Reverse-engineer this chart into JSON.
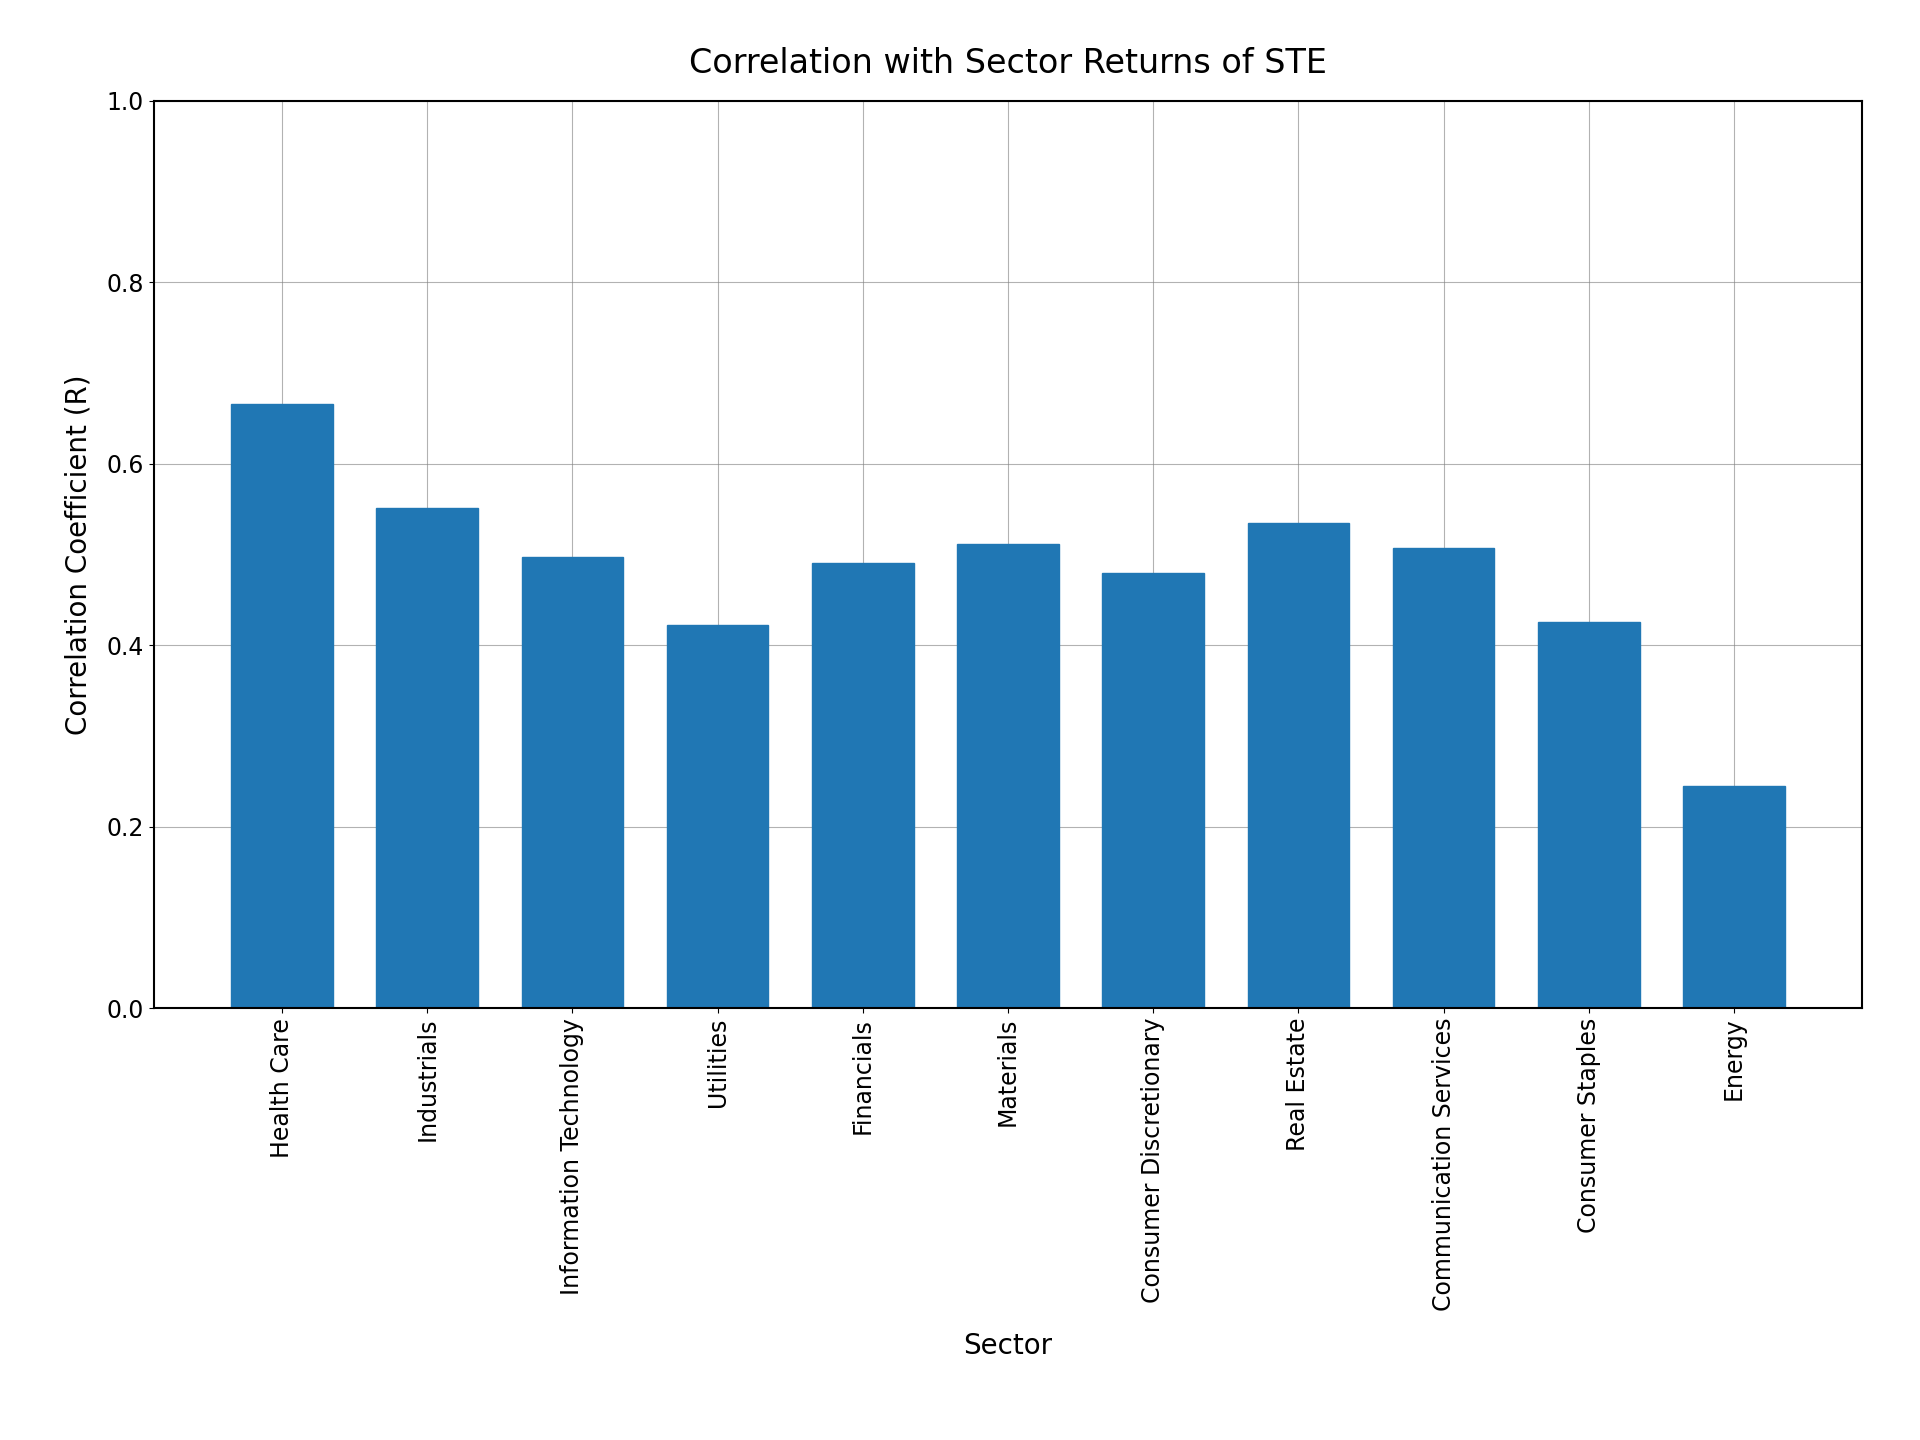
{
  "title": "Correlation with Sector Returns of STE",
  "xlabel": "Sector",
  "ylabel": "Correlation Coefficient (R)",
  "categories": [
    "Health Care",
    "Industrials",
    "Information Technology",
    "Utilities",
    "Financials",
    "Materials",
    "Consumer Discretionary",
    "Real Estate",
    "Communication Services",
    "Consumer Staples",
    "Energy"
  ],
  "values": [
    0.666,
    0.551,
    0.497,
    0.422,
    0.491,
    0.511,
    0.479,
    0.535,
    0.507,
    0.425,
    0.245
  ],
  "bar_color": "#2077b4",
  "ylim": [
    0.0,
    1.0
  ],
  "yticks": [
    0.0,
    0.2,
    0.4,
    0.6,
    0.8,
    1.0
  ],
  "title_fontsize": 24,
  "label_fontsize": 20,
  "tick_fontsize": 17,
  "background_color": "#ffffff",
  "bar_width": 0.7,
  "grid_color": "gray",
  "grid_linewidth": 0.8,
  "grid_alpha": 0.6
}
